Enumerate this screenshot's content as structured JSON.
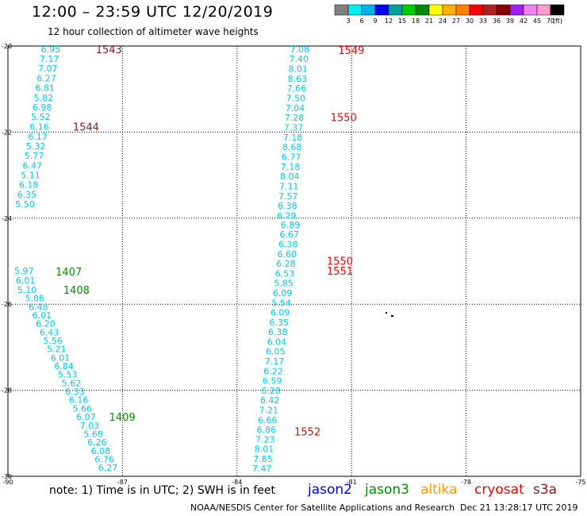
{
  "header": {
    "title": "12:00 – 23:59 UTC 12/20/2019",
    "subtitle": "12 hour collection of altimeter wave heights"
  },
  "colorbar": {
    "ticks": [
      "3",
      "6",
      "9",
      "12",
      "15",
      "18",
      "21",
      "24",
      "27",
      "30",
      "33",
      "36",
      "39",
      "42",
      "45",
      "70"
    ],
    "unit": "(ft)",
    "colors": [
      "#808080",
      "#00eeee",
      "#00b2ee",
      "#0000ee",
      "#00a0a0",
      "#00cc00",
      "#008b00",
      "#ffff00",
      "#ffb000",
      "#ff8000",
      "#ff0000",
      "#b22222",
      "#8b0000",
      "#a020f0",
      "#ee82ee",
      "#ff99cc",
      "#000000"
    ]
  },
  "footer": {
    "note": "note:  1) Time is in UTC; 2) SWH is in feet",
    "credit": "NOAA/NESDIS Center for Satellite Applications and Research",
    "timestamp": "Dec 21 13:28:17 UTC 2019",
    "satellites": [
      {
        "name": "jason2",
        "color": "#0000ee"
      },
      {
        "name": "jason3",
        "color": "#008b00"
      },
      {
        "name": "altika",
        "color": "#ff9900"
      },
      {
        "name": "cryosat",
        "color": "#ee0000"
      },
      {
        "name": "s3a",
        "color": "#8b1a1a"
      }
    ]
  },
  "chart_data": {
    "type": "scatter",
    "xlim": [
      -90,
      -75
    ],
    "ylim": [
      -30,
      -20
    ],
    "x_ticks": [
      "-90",
      "-87",
      "-84",
      "-81",
      "-78",
      "-75"
    ],
    "y_ticks": [
      "-20",
      "-22",
      "-24",
      "-26",
      "-28",
      "-30"
    ],
    "grid": true,
    "point_color": "#00c8e6",
    "tracks": [
      {
        "x0": -88.88,
        "x1": -89.18,
        "y0": -20.07,
        "y1": -21.87,
        "values": [
          "6.95",
          "7.17",
          "7.07",
          "6.27",
          "6.81",
          "5.82",
          "6.98",
          "5.52",
          "6.16"
        ]
      },
      {
        "x0": -89.22,
        "x1": -89.55,
        "y0": -22.1,
        "y1": -23.67,
        "values": [
          "6.17",
          "5.32",
          "5.77",
          "6.47",
          "5.11",
          "6.18",
          "6.35",
          "5.50"
        ]
      },
      {
        "x0": -89.58,
        "x1": -89.5,
        "y0": -25.22,
        "y1": -25.66,
        "values": [
          "5.97",
          "6.01",
          "5.10"
        ]
      },
      {
        "x0": -89.3,
        "x1": -87.38,
        "y0": -25.86,
        "y1": -29.8,
        "values": [
          "5.86",
          "6.48",
          "6.01",
          "6.20",
          "6.43",
          "5.56",
          "5.21",
          "6.01",
          "6.84",
          "5.53",
          "5.62",
          "6.33",
          "6.16",
          "5.66",
          "6.07",
          "7.03",
          "5.68",
          "6.26",
          "6.08",
          "6.76",
          "6.27"
        ]
      },
      {
        "x0": -82.36,
        "x1": -82.7,
        "y0": -20.07,
        "y1": -23.94,
        "values": [
          "7.08",
          "7.40",
          "8.01",
          "8.63",
          "7.66",
          "7.50",
          "7.04",
          "7.28",
          "7.37",
          "7.18",
          "8.68",
          "6.77",
          "7.18",
          "8.04",
          "7.11",
          "7.57",
          "6.38",
          "6.29"
        ]
      },
      {
        "x0": -82.6,
        "x1": -83.35,
        "y0": -24.15,
        "y1": -29.82,
        "values": [
          "6.89",
          "6.67",
          "6.38",
          "6.60",
          "6.28",
          "6.53",
          "5.85",
          "6.09",
          "5.54",
          "6.09",
          "6.35",
          "6.38",
          "6.04",
          "6.05",
          "7.17",
          "6.22",
          "6.59",
          "6.28",
          "6.42",
          "7.21",
          "6.66",
          "6.86",
          "7.23",
          "8.01",
          "7.85",
          "7.47"
        ]
      }
    ],
    "pass_labels": [
      {
        "text": "1543",
        "x": -87.7,
        "y": -20.07,
        "color": "#8b1a1a"
      },
      {
        "text": "1544",
        "x": -88.3,
        "y": -21.87,
        "color": "#8b1a1a"
      },
      {
        "text": "1549",
        "x": -81.35,
        "y": -20.09,
        "color": "#ee0000"
      },
      {
        "text": "1550",
        "x": -81.55,
        "y": -21.65,
        "color": "#ee0000"
      },
      {
        "text": "1550",
        "x": -81.65,
        "y": -24.99,
        "color": "#ee0000"
      },
      {
        "text": "1551",
        "x": -81.65,
        "y": -25.22,
        "color": "#ee0000"
      },
      {
        "text": "1552",
        "x": -82.5,
        "y": -28.96,
        "color": "#ee0000"
      },
      {
        "text": "1407",
        "x": -88.75,
        "y": -25.24,
        "color": "#008b00"
      },
      {
        "text": "1408",
        "x": -88.55,
        "y": -25.66,
        "color": "#008b00"
      },
      {
        "text": "1409",
        "x": -87.35,
        "y": -28.62,
        "color": "#008b00"
      }
    ]
  }
}
